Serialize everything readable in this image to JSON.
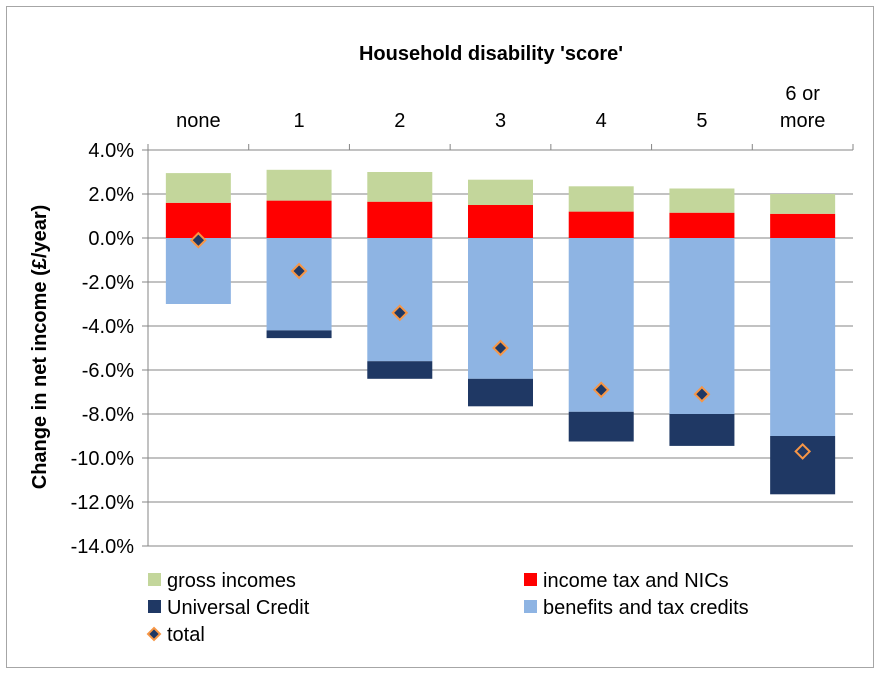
{
  "chart_data": {
    "type": "bar",
    "stacked": true,
    "title": "Household disability 'score'",
    "xlabel": "",
    "ylabel": "Change in net income (£/year)",
    "x_axis_position": "top",
    "categories": [
      "none",
      "1",
      "2",
      "3",
      "4",
      "5",
      "6 or more"
    ],
    "category_lines": [
      [
        "none"
      ],
      [
        "1"
      ],
      [
        "2"
      ],
      [
        "3"
      ],
      [
        "4"
      ],
      [
        "5"
      ],
      [
        "6 or",
        "more"
      ]
    ],
    "ylim": [
      -0.14,
      0.04
    ],
    "yticks": [
      0.04,
      0.02,
      0.0,
      -0.02,
      -0.04,
      -0.06,
      -0.08,
      -0.1,
      -0.12,
      -0.14
    ],
    "ytick_labels": [
      "4.0%",
      "2.0%",
      "0.0%",
      "-2.0%",
      "-4.0%",
      "-6.0%",
      "-8.0%",
      "-10.0%",
      "-12.0%",
      "-14.0%"
    ],
    "grid": true,
    "legend_position": "bottom",
    "series": [
      {
        "name": "income tax and NICs",
        "color": "#ff0000",
        "values": [
          0.016,
          0.017,
          0.0165,
          0.015,
          0.012,
          0.0115,
          0.011
        ]
      },
      {
        "name": "gross incomes",
        "color": "#c3d69b",
        "values": [
          0.0135,
          0.014,
          0.0135,
          0.0115,
          0.0115,
          0.011,
          0.009
        ]
      },
      {
        "name": "benefits and tax credits",
        "color": "#8eb4e3",
        "values": [
          -0.03,
          -0.042,
          -0.056,
          -0.064,
          -0.079,
          -0.08,
          -0.09
        ]
      },
      {
        "name": "Universal Credit",
        "color": "#1f3864",
        "values": [
          0.0,
          -0.0035,
          -0.008,
          -0.0125,
          -0.0135,
          -0.0145,
          -0.0265
        ]
      },
      {
        "name": "total",
        "color": "#1f3864",
        "edge_color": "#f79646",
        "marker": "diamond",
        "values": [
          -0.001,
          -0.015,
          -0.034,
          -0.05,
          -0.069,
          -0.071,
          -0.097
        ]
      }
    ],
    "legend_entries": [
      "gross incomes",
      "income tax and NICs",
      "Universal Credit",
      "benefits and tax credits",
      "total"
    ]
  }
}
